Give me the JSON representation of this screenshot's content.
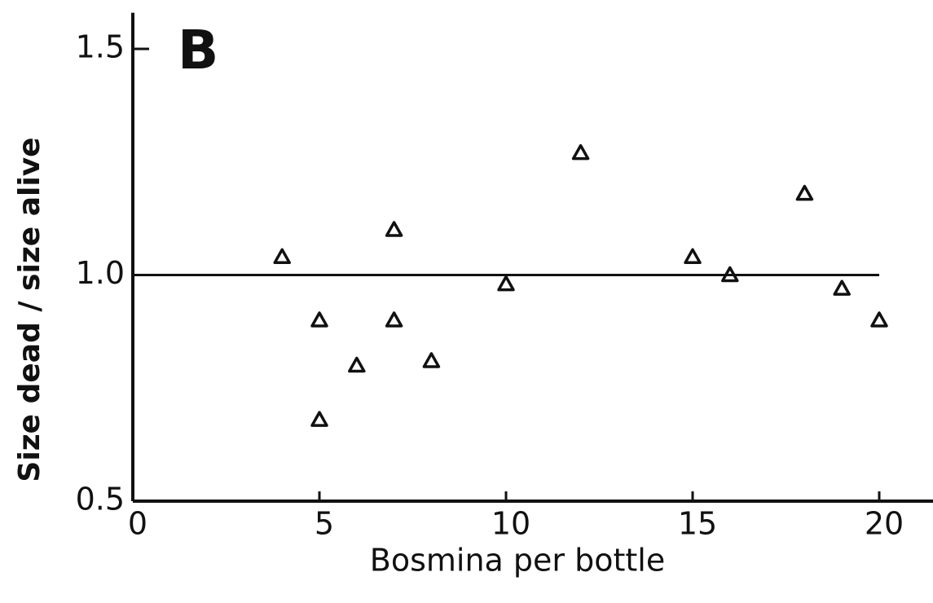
{
  "chart_data": {
    "type": "scatter",
    "panel_label": "B",
    "xlabel": "Bosmina per bottle",
    "ylabel": "Size dead / size alive",
    "x": [
      4,
      5,
      5,
      6,
      7,
      7,
      8,
      10,
      12,
      15,
      16,
      18,
      19,
      20
    ],
    "values": [
      1.04,
      0.9,
      0.68,
      0.8,
      1.1,
      0.9,
      0.81,
      0.98,
      1.27,
      1.04,
      1.0,
      1.18,
      0.97,
      0.9
    ],
    "color": "#111111",
    "reference_line": {
      "x": [
        0,
        20
      ],
      "y": [
        1,
        1
      ]
    },
    "xlim": [
      0,
      21.5
    ],
    "ylim": [
      0.5,
      1.58
    ],
    "xticks": [
      0,
      5,
      10,
      15,
      20
    ],
    "yticks": [
      0.5,
      {
        "value": 1,
        "label": "1.0"
      },
      1.5
    ],
    "grid": false
  }
}
